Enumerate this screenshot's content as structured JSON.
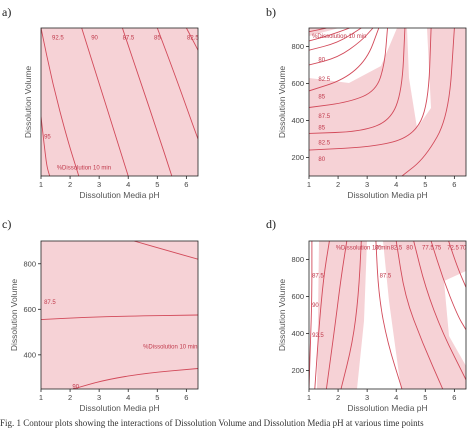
{
  "figure": {
    "caption_text": "Fig. 1 Contour plots showing the interactions of Dissolution Volume and Dissolution Media pH at various time points"
  },
  "colors": {
    "fill": "#f6d2d6",
    "line": "#d24a5a",
    "axis": "#222222",
    "text": "#555555"
  },
  "chart_data": [
    {
      "panel_label": "a)",
      "type": "contour",
      "xlabel": "Dissolution Media pH",
      "ylabel": "Dissolution Volume",
      "xlim": [
        1,
        6.4
      ],
      "ylim": [
        100,
        900
      ],
      "xticks": [
        1,
        2,
        3,
        4,
        5,
        6
      ],
      "yticks": [],
      "response": "%Dissolution 10 min",
      "contours": [
        {
          "label": "92.5",
          "points": [
            [
              1.0,
              900
            ],
            [
              1.4,
              600
            ],
            [
              1.9,
              300
            ],
            [
              2.3,
              100
            ]
          ]
        },
        {
          "label": "90",
          "points": [
            [
              2.4,
              900
            ],
            [
              3.0,
              600
            ],
            [
              3.6,
              300
            ],
            [
              4.0,
              100
            ]
          ]
        },
        {
          "label": "87.5",
          "points": [
            [
              3.8,
              900
            ],
            [
              4.4,
              620
            ],
            [
              5.0,
              340
            ],
            [
              5.5,
              100
            ]
          ]
        },
        {
          "label": "85",
          "points": [
            [
              5.0,
              900
            ],
            [
              5.6,
              650
            ],
            [
              6.1,
              430
            ],
            [
              6.4,
              300
            ]
          ]
        },
        {
          "label": "82.5",
          "points": [
            [
              6.0,
              900
            ],
            [
              6.2,
              840
            ],
            [
              6.4,
              780
            ]
          ]
        },
        {
          "label": "95",
          "points": [
            [
              1.0,
              420
            ],
            [
              1.1,
              280
            ],
            [
              1.2,
              150
            ],
            [
              1.3,
              100
            ]
          ]
        }
      ],
      "annotations": [
        "92.5",
        "90",
        "87.5",
        "85",
        "82.5",
        "95",
        "%Dissolution 10 min"
      ]
    },
    {
      "panel_label": "b)",
      "type": "contour",
      "xlabel": "Dissolution Media pH",
      "ylabel": "Dissolution Volume",
      "xlim": [
        1,
        6.4
      ],
      "ylim": [
        100,
        900
      ],
      "xticks": [
        1,
        2,
        3,
        4,
        5,
        6
      ],
      "yticks": [
        200,
        400,
        600,
        800
      ],
      "response": "%Dissolution 10 min",
      "contours": [
        {
          "label": "77.5",
          "points": [
            [
              1.0,
              880
            ],
            [
              1.6,
              900
            ]
          ]
        },
        {
          "label": "80",
          "points": [
            [
              1.0,
              830
            ],
            [
              1.7,
              860
            ],
            [
              2.4,
              900
            ]
          ]
        },
        {
          "label": "82.5",
          "points": [
            [
              1.0,
              780
            ],
            [
              2.0,
              820
            ],
            [
              2.8,
              900
            ]
          ]
        },
        {
          "label": "85",
          "points": [
            [
              1.0,
              700
            ],
            [
              2.0,
              740
            ],
            [
              2.8,
              830
            ],
            [
              3.2,
              900
            ]
          ]
        },
        {
          "label": "87.5",
          "points": [
            [
              1.0,
              560
            ],
            [
              2.2,
              620
            ],
            [
              3.0,
              730
            ],
            [
              3.4,
              900
            ]
          ]
        },
        {
          "label": "85",
          "points": [
            [
              1.0,
              470
            ],
            [
              2.4,
              500
            ],
            [
              3.3,
              560
            ],
            [
              3.6,
              700
            ],
            [
              3.7,
              900
            ]
          ]
        },
        {
          "label": "82.5",
          "points": [
            [
              1.0,
              330
            ],
            [
              2.8,
              340
            ],
            [
              3.8,
              400
            ],
            [
              4.2,
              560
            ],
            [
              4.3,
              900
            ]
          ]
        },
        {
          "label": "80",
          "points": [
            [
              1.0,
              240
            ],
            [
              3.4,
              260
            ],
            [
              4.6,
              320
            ],
            [
              5.1,
              480
            ],
            [
              5.2,
              900
            ]
          ]
        },
        {
          "label": "",
          "points": [
            [
              4.2,
              100
            ],
            [
              5.0,
              200
            ],
            [
              5.8,
              420
            ],
            [
              6.0,
              900
            ]
          ]
        }
      ],
      "annotations": [
        "%Dissolution 10 min",
        "80",
        "82.5",
        "85",
        "87.5",
        "85",
        "82.5",
        "80"
      ]
    },
    {
      "panel_label": "c)",
      "type": "contour",
      "xlabel": "Dissolution Media pH",
      "ylabel": "Dissolution Volume",
      "xlim": [
        1,
        6.4
      ],
      "ylim": [
        250,
        900
      ],
      "xticks": [
        1,
        2,
        3,
        4,
        5,
        6
      ],
      "yticks": [
        400,
        600,
        800
      ],
      "response": "%Dissolution 10 min",
      "contours": [
        {
          "label": "",
          "points": [
            [
              4.2,
              900
            ],
            [
              5.3,
              860
            ],
            [
              6.4,
              820
            ]
          ]
        },
        {
          "label": "87.5",
          "points": [
            [
              1.0,
              555
            ],
            [
              2.5,
              565
            ],
            [
              4.0,
              570
            ],
            [
              6.4,
              575
            ]
          ]
        },
        {
          "label": "90",
          "points": [
            [
              2.1,
              250
            ],
            [
              3.2,
              290
            ],
            [
              4.6,
              320
            ],
            [
              6.4,
              340
            ]
          ]
        }
      ],
      "annotations": [
        "87.5",
        "%Dissolution 10 min",
        "90"
      ]
    },
    {
      "panel_label": "d)",
      "type": "contour",
      "xlabel": "Dissolution Media pH",
      "ylabel": "Dissolution Volume",
      "xlim": [
        1,
        6.4
      ],
      "ylim": [
        100,
        900
      ],
      "xticks": [
        1,
        2,
        3,
        4,
        5,
        6
      ],
      "yticks": [
        200,
        400,
        600,
        800
      ],
      "response": "%Dissolution 10 min",
      "contours": [
        {
          "label": "87.5",
          "points": [
            [
              1.1,
              900
            ],
            [
              1.1,
              600
            ],
            [
              1.05,
              350
            ],
            [
              1.0,
              100
            ]
          ]
        },
        {
          "label": "90",
          "points": [
            [
              1.7,
              900
            ],
            [
              1.5,
              700
            ],
            [
              1.35,
              450
            ],
            [
              1.2,
              100
            ]
          ]
        },
        {
          "label": "92.5",
          "points": [
            [
              2.3,
              900
            ],
            [
              2.1,
              700
            ],
            [
              1.9,
              450
            ],
            [
              1.6,
              100
            ]
          ]
        },
        {
          "label": "",
          "points": [
            [
              2.8,
              900
            ],
            [
              2.7,
              600
            ],
            [
              2.5,
              350
            ],
            [
              2.1,
              100
            ]
          ]
        },
        {
          "label": "87.5",
          "points": [
            [
              3.3,
              900
            ],
            [
              3.4,
              600
            ],
            [
              3.7,
              350
            ],
            [
              4.2,
              100
            ]
          ]
        },
        {
          "label": "",
          "points": [
            [
              4.0,
              900
            ],
            [
              4.3,
              600
            ],
            [
              4.9,
              350
            ],
            [
              5.6,
              100
            ]
          ]
        },
        {
          "label": "",
          "points": [
            [
              4.6,
              900
            ],
            [
              5.0,
              650
            ],
            [
              5.6,
              400
            ],
            [
              6.4,
              150
            ]
          ]
        },
        {
          "label": "",
          "points": [
            [
              5.2,
              900
            ],
            [
              5.6,
              700
            ],
            [
              6.1,
              500
            ],
            [
              6.4,
              420
            ]
          ]
        },
        {
          "label": "",
          "points": [
            [
              5.8,
              900
            ],
            [
              6.1,
              760
            ],
            [
              6.4,
              650
            ]
          ]
        }
      ],
      "annotations": [
        "%Dissolution 10 min",
        "85",
        "82.5",
        "80",
        "77.5",
        "75",
        "72.5",
        "70",
        "87.5",
        "90",
        "92.5",
        "87.5"
      ]
    }
  ]
}
